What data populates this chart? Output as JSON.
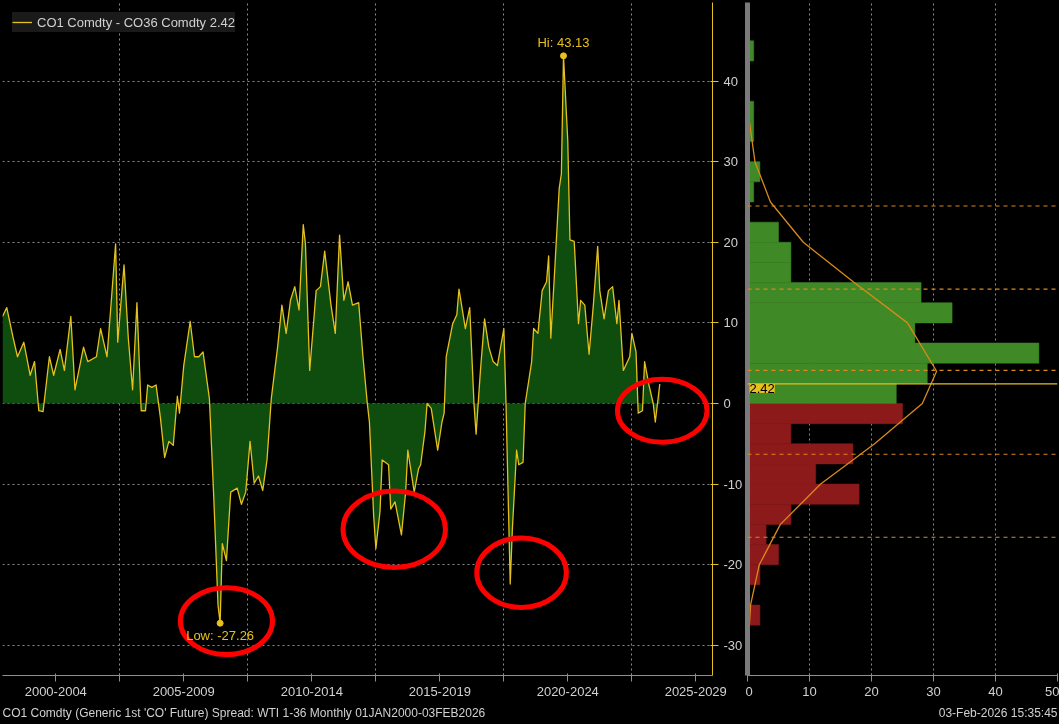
{
  "chart_data": [
    {
      "type": "area",
      "xlim": [
        "2000-06-01",
        "2028-02-25"
      ],
      "ylim": [
        -33.75,
        49.75
      ],
      "xticks": [
        {
          "value": "2002-07-01",
          "label": "2000-2004"
        },
        {
          "value": "2005-01-01",
          "label": null
        },
        {
          "value": "2007-07-01",
          "label": "2005-2009"
        },
        {
          "value": "2010-01-01",
          "label": null
        },
        {
          "value": "2012-07-01",
          "label": "2010-2014"
        },
        {
          "value": "2015-01-01",
          "label": null
        },
        {
          "value": "2017-07-01",
          "label": "2015-2019"
        },
        {
          "value": "2020-01-01",
          "label": null
        },
        {
          "value": "2022-07-01",
          "label": "2020-2024"
        },
        {
          "value": "2025-01-01",
          "label": null
        },
        {
          "value": "2027-07-01",
          "label": "2025-2029"
        }
      ],
      "yticks": [
        -30,
        -20,
        -10,
        0,
        10,
        20,
        30,
        40
      ],
      "grid": true,
      "legend": "top left",
      "series": [
        {
          "name": "CO1 Comdty - CO36 Comdty 2.42",
          "color": "#e6c01c",
          "x": [
            "2000-06",
            "2000-08",
            "2000-11",
            "2001-01",
            "2001-04",
            "2001-07",
            "2001-09",
            "2001-11",
            "2002-01",
            "2002-04",
            "2002-06",
            "2002-09",
            "2002-11",
            "2003-02",
            "2003-04",
            "2003-08",
            "2003-10",
            "2004-02",
            "2004-04",
            "2004-07",
            "2004-09",
            "2004-11",
            "2004-12",
            "2005-03",
            "2005-05",
            "2005-07",
            "2005-09",
            "2005-11",
            "2006-01",
            "2006-02",
            "2006-04",
            "2006-06",
            "2006-08",
            "2006-10",
            "2006-12",
            "2007-02",
            "2007-04",
            "2007-05",
            "2007-07",
            "2007-10",
            "2007-12",
            "2008-02",
            "2008-04",
            "2008-07",
            "2008-09",
            "2008-11",
            "2008-12",
            "2009-01",
            "2009-03",
            "2009-05",
            "2009-08",
            "2009-10",
            "2009-12",
            "2010-02",
            "2010-04",
            "2010-06",
            "2010-08",
            "2010-10",
            "2010-12",
            "2011-03",
            "2011-05",
            "2011-07",
            "2011-09",
            "2011-11",
            "2012-01",
            "2012-03",
            "2012-04",
            "2012-06",
            "2012-09",
            "2012-11",
            "2013-01",
            "2013-04",
            "2013-06",
            "2013-08",
            "2013-10",
            "2013-12",
            "2014-02",
            "2014-05",
            "2014-07",
            "2014-09",
            "2014-10",
            "2014-12",
            "2015-01",
            "2015-03",
            "2015-04",
            "2015-07",
            "2015-08",
            "2015-10",
            "2016-01",
            "2016-03",
            "2016-04",
            "2016-07",
            "2016-09",
            "2016-10",
            "2016-12",
            "2017-01",
            "2017-03",
            "2017-06",
            "2017-08",
            "2017-09",
            "2017-10",
            "2018-01",
            "2018-03",
            "2018-04",
            "2018-07",
            "2018-09",
            "2018-11",
            "2018-12",
            "2019-02",
            "2019-04",
            "2019-06",
            "2019-08",
            "2019-10",
            "2020-01",
            "2020-02",
            "2020-04",
            "2020-05",
            "2020-07",
            "2020-08",
            "2020-10",
            "2020-11",
            "2021-02",
            "2021-03",
            "2021-05",
            "2021-07",
            "2021-09",
            "2021-10",
            "2021-11",
            "2022-01",
            "2022-03",
            "2022-04",
            "2022-05",
            "2022-07",
            "2022-08",
            "2022-10",
            "2022-12",
            "2023-01",
            "2023-03",
            "2023-05",
            "2023-07",
            "2023-09",
            "2023-10",
            "2023-12",
            "2024-02",
            "2024-04",
            "2024-06",
            "2024-07",
            "2024-09",
            "2024-12",
            "2025-01",
            "2025-03",
            "2025-04",
            "2025-06",
            "2025-07",
            "2025-09",
            "2025-11",
            "2025-12",
            "2026-02-03"
          ],
          "values": [
            10.8,
            11.9,
            8.1,
            5.8,
            7.6,
            3.5,
            5.2,
            -0.9,
            -1.0,
            5.8,
            3.5,
            6.7,
            4.1,
            10.8,
            1.7,
            7.0,
            5.2,
            5.8,
            9.3,
            5.8,
            12.8,
            19.8,
            7.6,
            17.2,
            8.1,
            1.7,
            12.5,
            -0.9,
            -0.9,
            2.3,
            2.0,
            2.3,
            -1.7,
            -6.7,
            -4.7,
            -5.2,
            0.9,
            -1.2,
            4.7,
            10.2,
            5.8,
            5.8,
            6.4,
            0.6,
            -11.6,
            -25.0,
            -27.26,
            -17.4,
            -19.5,
            -11.0,
            -10.5,
            -12.5,
            -11.0,
            -4.7,
            -9.9,
            -9.0,
            -10.8,
            -7.0,
            0.6,
            7.0,
            12.2,
            8.7,
            12.8,
            14.5,
            11.6,
            22.2,
            19.8,
            4.1,
            14.0,
            14.5,
            18.9,
            12.2,
            8.7,
            20.9,
            12.8,
            15.1,
            12.2,
            12.5,
            5.8,
            0,
            -2.3,
            -14.0,
            -18.0,
            -13.4,
            -7.0,
            -7.6,
            -13.1,
            -12.2,
            -16.3,
            -11.0,
            -5.8,
            -11.0,
            -8.1,
            -7.6,
            -3.5,
            0,
            -0.6,
            -5.8,
            -2.3,
            -1.2,
            5.8,
            9.9,
            11.0,
            14.2,
            9.3,
            11.9,
            0,
            -3.8,
            4.1,
            10.5,
            7.0,
            5.2,
            4.7,
            9.3,
            0,
            -22.4,
            -15.7,
            -5.8,
            -7.6,
            -7.3,
            0,
            5.2,
            9.3,
            8.7,
            14.0,
            15.1,
            18.3,
            8.1,
            17.4,
            26.7,
            28.5,
            43.13,
            32.6,
            20.3,
            20.1,
            9.9,
            12.8,
            12.2,
            6.1,
            12.2,
            19.5,
            14.0,
            10.5,
            14.0,
            14.5,
            9.9,
            12.8,
            4.1,
            5.8,
            8.7,
            6.4,
            -1.2,
            -0.9,
            5.2,
            2.3,
            0,
            -2.3,
            2.42
          ]
        }
      ],
      "annotations": [
        {
          "text": "Hi: 43.13",
          "x": "2022-05",
          "y": 43.13
        },
        {
          "text": "Low: -27.26",
          "x": "2008-12",
          "y": -27.26
        },
        "CO1 Comdty (Generic 1st 'CO' Future) Spread: WTI 1-36 Monthly 01JAN2000-03FEB2026"
      ]
    },
    {
      "type": "histogram",
      "orientation": "horizontal",
      "tick_labels": "x",
      "xlim": [
        0,
        50
      ],
      "xticks": [
        0,
        10,
        20,
        30,
        40,
        50
      ],
      "ylim": [
        -33.75,
        49.75
      ],
      "grid": "x",
      "bins": [
        -27.5,
        -25,
        -22.5,
        -20,
        -17.5,
        -15,
        -12.5,
        -10,
        -7.5,
        -5,
        -2.5,
        0,
        2.5,
        5,
        7.5,
        10,
        12.5,
        15,
        17.5,
        20,
        22.5,
        25,
        27.5,
        30,
        32.5,
        35,
        37.5,
        40,
        42.5,
        45
      ],
      "values": [
        2,
        0,
        2,
        5,
        3,
        7,
        18,
        11,
        17,
        7,
        25,
        24,
        29,
        47,
        27,
        33,
        28,
        7,
        7,
        5,
        0,
        1,
        2,
        0,
        1,
        1,
        0,
        0,
        1
      ],
      "colors": [
        "#8c1a1a",
        "#8c1a1a",
        "#8c1a1a",
        "#8c1a1a",
        "#8c1a1a",
        "#8c1a1a",
        "#8c1a1a",
        "#8c1a1a",
        "#8c1a1a",
        "#8c1a1a",
        "#8c1a1a",
        "#3f8a26",
        "#3f8a26",
        "#3f8a26",
        "#3f8a26",
        "#3f8a26",
        "#3f8a26",
        "#3f8a26",
        "#3f8a26",
        "#3f8a26",
        "#3f8a26",
        "#3f8a26",
        "#3f8a26",
        "#3f8a26",
        "#3f8a26",
        "#3f8a26",
        "#3f8a26",
        "#3f8a26",
        "#3f8a26"
      ],
      "series": [
        {
          "type": "line",
          "color": "#d98a1a",
          "x": [
            -27.5,
            -25,
            -20,
            -15,
            -10,
            -5,
            0,
            4,
            10,
            15,
            20,
            25,
            30,
            35,
            40,
            45
          ],
          "values": [
            0.3,
            0.5,
            1.9,
            5.3,
            11.8,
            20.5,
            28.2,
            30.5,
            25.8,
            17.2,
            9.0,
            3.7,
            1.2,
            0.3,
            0.1,
            0
          ]
        }
      ],
      "ref_lines": [
        {
          "axis": "y",
          "value": 2.42,
          "label": "2.42",
          "color": "#e6c01c",
          "line_style": "solid"
        },
        {
          "axis": "y",
          "value": 24.5,
          "label": null,
          "color": "#d98a1a",
          "line_style": "dashed"
        },
        {
          "axis": "y",
          "value": 14.2,
          "label": null,
          "color": "#d98a1a",
          "line_style": "dashed"
        },
        {
          "axis": "y",
          "value": 4.1,
          "label": null,
          "color": "#d98a1a",
          "line_style": "dashed"
        },
        {
          "axis": "y",
          "value": -6.3,
          "label": null,
          "color": "#d98a1a",
          "line_style": "dashed"
        },
        {
          "axis": "y",
          "value": -16.6,
          "label": null,
          "color": "#d98a1a",
          "line_style": "dashed"
        }
      ],
      "annotations": [
        "03-Feb-2026 15:35:45"
      ]
    }
  ]
}
